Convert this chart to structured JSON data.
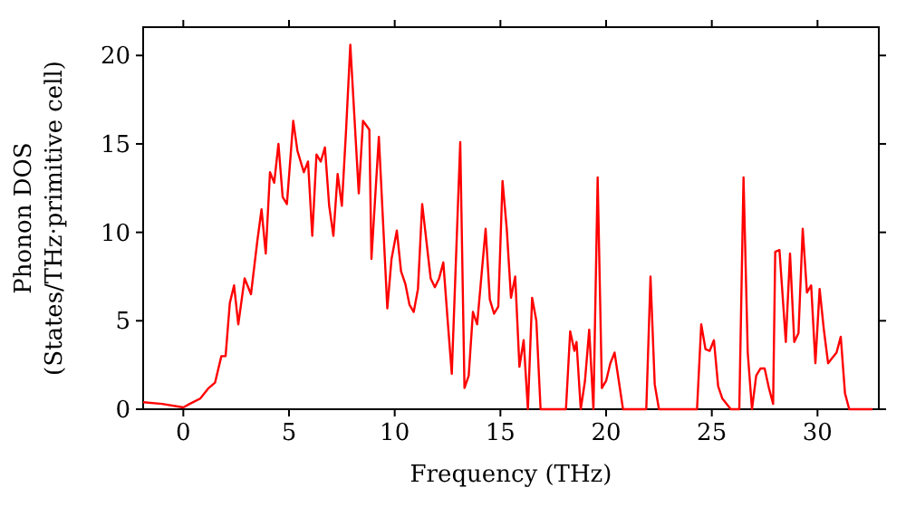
{
  "chart_data": {
    "type": "line",
    "xlabel": "Frequency (THz)",
    "ylabel": "Phonon DOS\n(States/THz·primitive cell)",
    "xlim": [
      -1.9,
      32.9
    ],
    "ylim": [
      0,
      21.6
    ],
    "xticks": [
      0,
      5,
      10,
      15,
      20,
      25,
      30
    ],
    "yticks": [
      0,
      5,
      10,
      15,
      20
    ],
    "grid": false,
    "line_style": "solid",
    "series": [
      {
        "color": "#ff0000",
        "x": [
          -1.9,
          -1,
          0,
          0.3,
          0.8,
          1.2,
          1.5,
          1.8,
          2.0,
          2.2,
          2.4,
          2.6,
          2.9,
          3.2,
          3.5,
          3.7,
          3.9,
          4.1,
          4.3,
          4.5,
          4.7,
          4.9,
          5.2,
          5.4,
          5.7,
          5.9,
          6.1,
          6.3,
          6.5,
          6.7,
          6.9,
          7.1,
          7.3,
          7.5,
          7.7,
          7.9,
          8.3,
          8.5,
          8.8,
          8.9,
          9.25,
          9.65,
          9.85,
          10.1,
          10.3,
          10.5,
          10.7,
          10.9,
          11.1,
          11.3,
          11.5,
          11.7,
          11.9,
          12.1,
          12.3,
          12.5,
          12.7,
          13.1,
          13.3,
          13.5,
          13.7,
          13.9,
          14.3,
          14.5,
          14.7,
          14.9,
          15.1,
          15.3,
          15.5,
          15.7,
          15.9,
          16.1,
          16.3,
          16.5,
          16.7,
          16.9,
          18.1,
          18.3,
          18.5,
          18.6,
          18.8,
          19.0,
          19.2,
          19.4,
          19.6,
          19.8,
          20.0,
          20.2,
          20.4,
          20.6,
          20.8,
          21.9,
          22.1,
          22.3,
          22.5,
          24.3,
          24.5,
          24.7,
          24.9,
          25.1,
          25.3,
          25.5,
          25.9,
          26.3,
          26.5,
          26.7,
          26.9,
          27.1,
          27.3,
          27.5,
          27.7,
          27.9,
          28.0,
          28.2,
          28.5,
          28.7,
          28.9,
          29.1,
          29.3,
          29.5,
          29.7,
          29.9,
          30.1,
          30.3,
          30.5,
          30.7,
          30.9,
          31.1,
          31.3,
          31.5,
          32.6
        ],
        "values": [
          0.4,
          0.3,
          0.1,
          0.3,
          0.6,
          1.2,
          1.5,
          3.0,
          3.0,
          6.0,
          7.0,
          4.8,
          7.4,
          6.5,
          9.5,
          11.3,
          8.8,
          13.4,
          12.8,
          15.0,
          12.0,
          11.6,
          16.3,
          14.6,
          13.4,
          14.0,
          9.8,
          14.4,
          14.0,
          14.8,
          11.5,
          9.8,
          13.3,
          11.5,
          15.8,
          20.6,
          12.2,
          16.3,
          15.8,
          8.5,
          15.4,
          5.7,
          8.5,
          10.1,
          7.8,
          7.1,
          5.9,
          5.5,
          6.8,
          11.6,
          9.5,
          7.4,
          6.9,
          7.4,
          8.3,
          5.1,
          2.0,
          15.1,
          1.2,
          1.9,
          5.5,
          4.8,
          10.2,
          6.2,
          5.4,
          5.8,
          12.9,
          10.2,
          6.3,
          7.5,
          2.4,
          3.9,
          0,
          6.3,
          5.0,
          0,
          0,
          4.4,
          3.3,
          3.8,
          0,
          1.6,
          4.5,
          0,
          13.1,
          1.2,
          1.6,
          2.6,
          3.2,
          1.6,
          0,
          0,
          7.5,
          1.4,
          0,
          0,
          4.8,
          3.4,
          3.3,
          3.9,
          1.3,
          0.6,
          0,
          0,
          13.1,
          3.2,
          0,
          1.9,
          2.3,
          2.3,
          1.2,
          0.3,
          8.9,
          9.0,
          3.8,
          8.8,
          3.8,
          4.3,
          10.2,
          6.6,
          7.0,
          2.6,
          6.8,
          4.5,
          2.6,
          2.9,
          3.2,
          4.1,
          0.9,
          0,
          0
        ]
      }
    ]
  }
}
